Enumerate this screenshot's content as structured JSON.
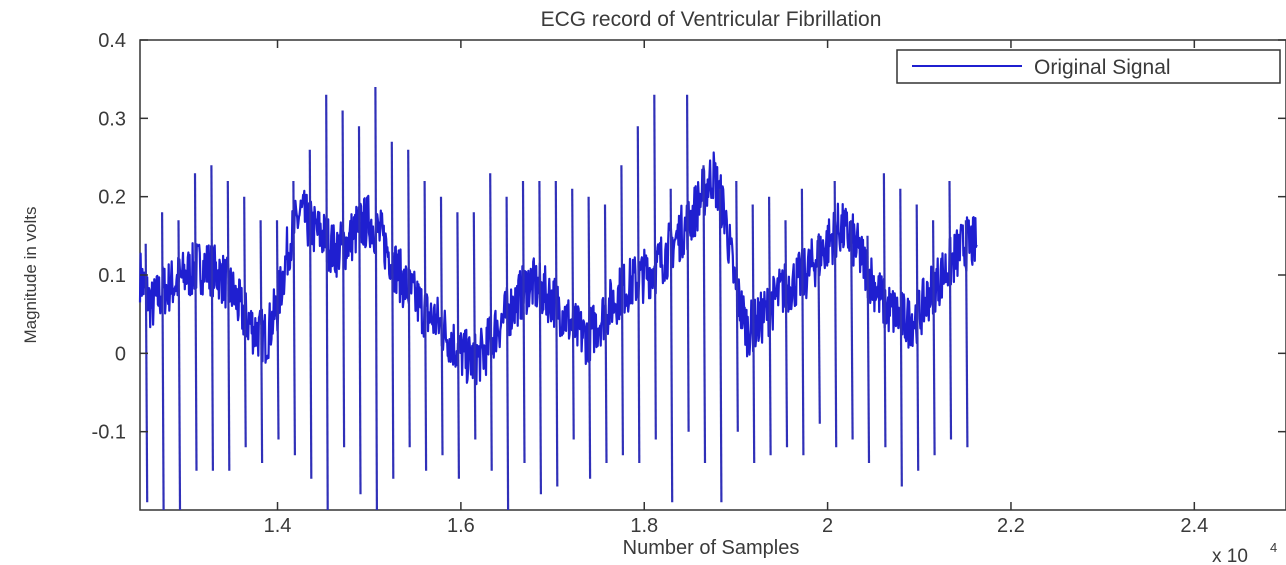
{
  "chart_data": {
    "type": "line",
    "title": "ECG record of Ventricular Fibrillation",
    "xlabel": "Number of Samples",
    "ylabel": "Magnitude in volts",
    "x_exponent_label": "x 10",
    "x_exponent_power": "4",
    "x_scale": 10000,
    "xlim": [
      1.25,
      2.5
    ],
    "ylim": [
      -0.2,
      0.4
    ],
    "x_ticks": [
      1.4,
      1.6,
      1.8,
      2.0,
      2.2,
      2.4
    ],
    "x_tick_labels": [
      "1.4",
      "1.6",
      "1.8",
      "2",
      "2.2",
      "2.4"
    ],
    "y_ticks": [
      -0.1,
      0,
      0.1,
      0.2,
      0.3,
      0.4
    ],
    "y_tick_labels": [
      "-0.1",
      "0",
      "0.1",
      "0.2",
      "0.3",
      "0.4"
    ],
    "grid": false,
    "legend_position": "top-right",
    "series": [
      {
        "name": "Original Signal",
        "color": "#1f1fd0",
        "x": [
          1.25,
          1.2625,
          1.275,
          1.2875,
          1.3,
          1.3125,
          1.325,
          1.3375,
          1.35,
          1.3625,
          1.375,
          1.3875,
          1.4,
          1.4125,
          1.425,
          1.4375,
          1.45,
          1.4625,
          1.475,
          1.4875,
          1.5,
          1.5125,
          1.525,
          1.5375,
          1.55,
          1.5625,
          1.575,
          1.5875,
          1.6,
          1.6125,
          1.625,
          1.6375,
          1.65,
          1.6625,
          1.675,
          1.6875,
          1.7,
          1.7125,
          1.725,
          1.7375,
          1.75,
          1.7625,
          1.775,
          1.7875,
          1.8,
          1.8125,
          1.825,
          1.8375,
          1.85,
          1.8625,
          1.875,
          1.8875,
          1.9,
          1.9125,
          1.925,
          1.9375,
          1.95,
          1.9625,
          1.975,
          1.9875,
          2.0,
          2.0125,
          2.025,
          2.0375,
          2.05,
          2.0625,
          2.075,
          2.0875,
          2.1,
          2.1125,
          2.125,
          2.1375,
          2.15,
          2.1625
        ],
        "y": [
          0.1,
          0.06,
          0.08,
          0.09,
          0.1,
          0.11,
          0.11,
          0.1,
          0.08,
          0.05,
          0.03,
          0.02,
          0.06,
          0.14,
          0.18,
          0.16,
          0.15,
          0.13,
          0.14,
          0.16,
          0.17,
          0.15,
          0.12,
          0.09,
          0.07,
          0.05,
          0.04,
          0.02,
          0.0,
          -0.01,
          0.0,
          0.03,
          0.05,
          0.07,
          0.09,
          0.08,
          0.07,
          0.05,
          0.03,
          0.02,
          0.04,
          0.06,
          0.08,
          0.09,
          0.1,
          0.11,
          0.13,
          0.15,
          0.17,
          0.2,
          0.23,
          0.18,
          0.08,
          0.03,
          0.04,
          0.06,
          0.08,
          0.09,
          0.1,
          0.12,
          0.14,
          0.16,
          0.15,
          0.12,
          0.09,
          0.06,
          0.05,
          0.04,
          0.05,
          0.08,
          0.1,
          0.12,
          0.14,
          0.14
        ],
        "spike_high": [
          0.14,
          0.18,
          0.17,
          0.23,
          0.24,
          0.22,
          0.2,
          0.17,
          0.17,
          0.22,
          0.26,
          0.33,
          0.31,
          0.29,
          0.34,
          0.27,
          0.26,
          0.22,
          0.2,
          0.18,
          0.18,
          0.23,
          0.2,
          0.22,
          0.22,
          0.22,
          0.21,
          0.2,
          0.19,
          0.24,
          0.29,
          0.33,
          0.21,
          0.33,
          0.24,
          0.21,
          0.22,
          0.19,
          0.2,
          0.17,
          0.21,
          0.15,
          0.22,
          0.17,
          0.15,
          0.23,
          0.21,
          0.19,
          0.17,
          0.22,
          0.17
        ],
        "spike_low": [
          -0.19,
          -0.2,
          -0.2,
          -0.15,
          -0.15,
          -0.15,
          -0.12,
          -0.14,
          -0.11,
          -0.13,
          -0.16,
          -0.2,
          -0.12,
          -0.18,
          -0.2,
          -0.16,
          -0.12,
          -0.15,
          -0.13,
          -0.16,
          -0.11,
          -0.15,
          -0.2,
          -0.14,
          -0.18,
          -0.17,
          -0.11,
          -0.16,
          -0.14,
          -0.13,
          -0.14,
          -0.11,
          -0.19,
          -0.1,
          -0.14,
          -0.19,
          -0.1,
          -0.14,
          -0.13,
          -0.12,
          -0.13,
          -0.09,
          -0.12,
          -0.11,
          -0.14,
          -0.12,
          -0.17,
          -0.15,
          -0.13,
          -0.11,
          -0.12
        ]
      }
    ]
  }
}
